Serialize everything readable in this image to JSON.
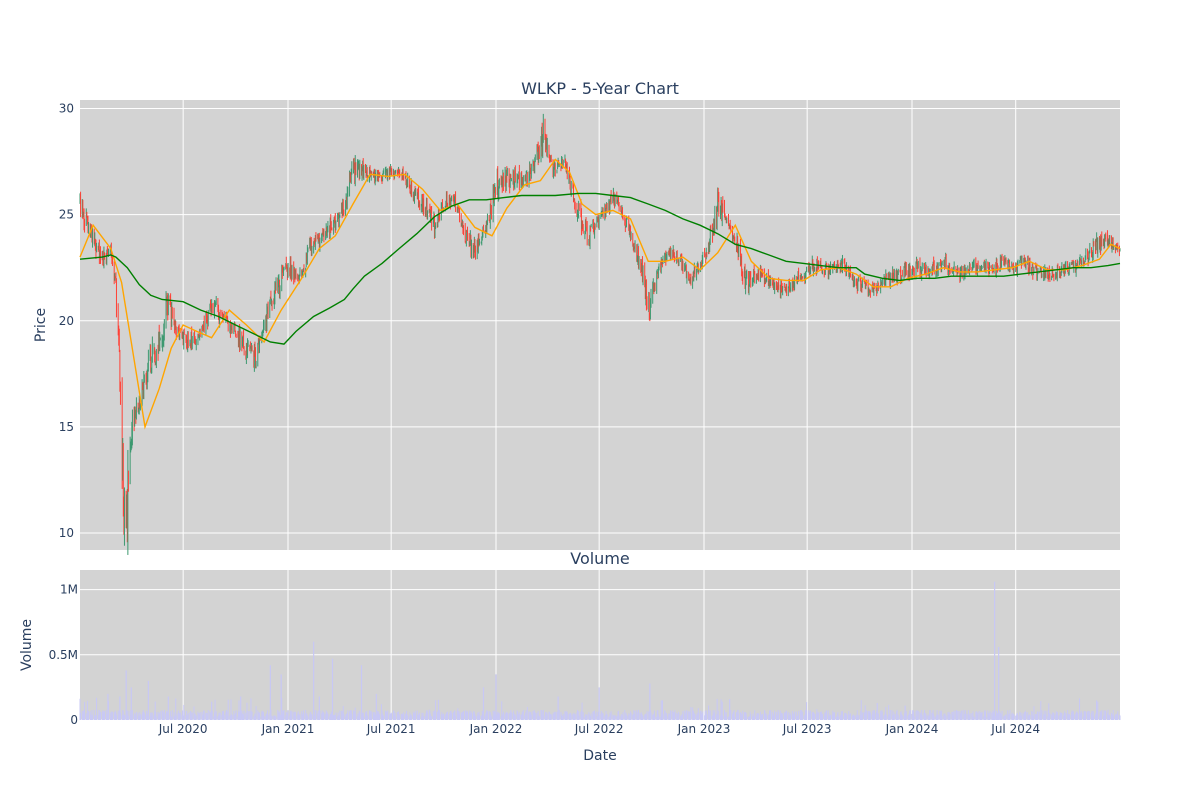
{
  "colors": {
    "plot_bg": "#d3d3d3",
    "up": "#3d9970",
    "down": "#ff4136",
    "ma_short": "#ffa500",
    "ma_long": "#008000",
    "volume": "#c8c8f5",
    "text": "#2a3f5f"
  },
  "chart_data": [
    {
      "type": "candlestick",
      "title": "WLKP - 5-Year Chart",
      "ylabel": "Price",
      "ylim": [
        9.2,
        30.4
      ],
      "yticks": [
        10,
        15,
        20,
        25,
        30
      ],
      "ytick_labels": [
        "10",
        "15",
        "20",
        "25",
        "30"
      ],
      "xlim": [
        "2020-01-02",
        "2024-12-31"
      ],
      "grid": true,
      "price_path": [
        [
          "2020-01-02",
          25.2
        ],
        [
          "2020-01-15",
          24.6
        ],
        [
          "2020-02-01",
          23.3
        ],
        [
          "2020-02-15",
          22.8
        ],
        [
          "2020-02-25",
          23.2
        ],
        [
          "2020-03-05",
          21.5
        ],
        [
          "2020-03-12",
          17.5
        ],
        [
          "2020-03-18",
          12.5
        ],
        [
          "2020-03-23",
          10.6
        ],
        [
          "2020-03-31",
          14.5
        ],
        [
          "2020-04-15",
          16.0
        ],
        [
          "2020-05-01",
          18.0
        ],
        [
          "2020-05-20",
          19.0
        ],
        [
          "2020-06-05",
          21.0
        ],
        [
          "2020-06-20",
          19.5
        ],
        [
          "2020-07-10",
          19.0
        ],
        [
          "2020-08-01",
          19.3
        ],
        [
          "2020-08-20",
          20.6
        ],
        [
          "2020-09-10",
          20.2
        ],
        [
          "2020-10-01",
          19.5
        ],
        [
          "2020-10-20",
          18.6
        ],
        [
          "2020-11-05",
          18.3
        ],
        [
          "2020-11-20",
          19.8
        ],
        [
          "2020-12-10",
          21.5
        ],
        [
          "2021-01-05",
          22.5
        ],
        [
          "2021-01-25",
          22.0
        ],
        [
          "2021-02-10",
          23.6
        ],
        [
          "2021-03-01",
          23.8
        ],
        [
          "2021-03-20",
          24.5
        ],
        [
          "2021-04-10",
          25.5
        ],
        [
          "2021-04-25",
          27.0
        ],
        [
          "2021-05-10",
          27.2
        ],
        [
          "2021-06-01",
          26.8
        ],
        [
          "2021-07-01",
          27.0
        ],
        [
          "2021-07-20",
          26.9
        ],
        [
          "2021-08-10",
          26.0
        ],
        [
          "2021-09-01",
          25.2
        ],
        [
          "2021-09-15",
          24.5
        ],
        [
          "2021-10-01",
          25.5
        ],
        [
          "2021-10-20",
          25.8
        ],
        [
          "2021-11-10",
          23.8
        ],
        [
          "2021-11-25",
          23.3
        ],
        [
          "2021-12-15",
          24.5
        ],
        [
          "2022-01-05",
          26.5
        ],
        [
          "2022-02-01",
          26.8
        ],
        [
          "2022-02-20",
          26.5
        ],
        [
          "2022-03-10",
          27.5
        ],
        [
          "2022-03-25",
          28.8
        ],
        [
          "2022-04-10",
          27.2
        ],
        [
          "2022-05-01",
          27.5
        ],
        [
          "2022-05-20",
          25.5
        ],
        [
          "2022-06-10",
          24.0
        ],
        [
          "2022-07-05",
          24.8
        ],
        [
          "2022-07-25",
          25.8
        ],
        [
          "2022-08-20",
          24.5
        ],
        [
          "2022-09-10",
          22.8
        ],
        [
          "2022-09-28",
          20.5
        ],
        [
          "2022-10-15",
          22.5
        ],
        [
          "2022-11-01",
          23.3
        ],
        [
          "2022-11-20",
          22.8
        ],
        [
          "2022-12-10",
          22.0
        ],
        [
          "2023-01-05",
          23.2
        ],
        [
          "2023-01-25",
          25.4
        ],
        [
          "2023-02-10",
          24.8
        ],
        [
          "2023-03-01",
          23.5
        ],
        [
          "2023-03-15",
          21.8
        ],
        [
          "2023-04-05",
          22.3
        ],
        [
          "2023-05-01",
          21.8
        ],
        [
          "2023-05-25",
          21.4
        ],
        [
          "2023-06-15",
          22.0
        ],
        [
          "2023-07-10",
          22.6
        ],
        [
          "2023-08-05",
          22.4
        ],
        [
          "2023-09-01",
          22.7
        ],
        [
          "2023-09-25",
          21.8
        ],
        [
          "2023-10-20",
          21.3
        ],
        [
          "2023-11-15",
          21.9
        ],
        [
          "2023-12-10",
          22.1
        ],
        [
          "2024-01-10",
          22.5
        ],
        [
          "2024-02-01",
          22.4
        ],
        [
          "2024-02-25",
          22.8
        ],
        [
          "2024-03-25",
          22.2
        ],
        [
          "2024-04-20",
          22.5
        ],
        [
          "2024-05-20",
          22.4
        ],
        [
          "2024-06-10",
          22.8
        ],
        [
          "2024-06-25",
          22.4
        ],
        [
          "2024-07-15",
          22.8
        ],
        [
          "2024-08-05",
          22.3
        ],
        [
          "2024-08-25",
          22.1
        ],
        [
          "2024-09-20",
          22.4
        ],
        [
          "2024-10-15",
          22.6
        ],
        [
          "2024-11-01",
          22.9
        ],
        [
          "2024-11-20",
          23.6
        ],
        [
          "2024-12-10",
          23.8
        ],
        [
          "2024-12-31",
          23.4
        ]
      ],
      "ma_short_path": [
        [
          "2020-01-02",
          23.0
        ],
        [
          "2020-01-25",
          24.5
        ],
        [
          "2020-02-25",
          23.4
        ],
        [
          "2020-03-15",
          21.8
        ],
        [
          "2020-04-10",
          17.5
        ],
        [
          "2020-04-25",
          15.0
        ],
        [
          "2020-05-20",
          16.8
        ],
        [
          "2020-06-10",
          18.7
        ],
        [
          "2020-07-01",
          19.8
        ],
        [
          "2020-07-25",
          19.5
        ],
        [
          "2020-08-20",
          19.2
        ],
        [
          "2020-09-20",
          20.5
        ],
        [
          "2020-10-20",
          19.8
        ],
        [
          "2020-11-20",
          19.0
        ],
        [
          "2020-12-20",
          20.5
        ],
        [
          "2021-01-25",
          22.0
        ],
        [
          "2021-02-25",
          23.4
        ],
        [
          "2021-03-25",
          24.0
        ],
        [
          "2021-04-25",
          25.5
        ],
        [
          "2021-05-25",
          26.9
        ],
        [
          "2021-06-25",
          26.8
        ],
        [
          "2021-07-25",
          26.9
        ],
        [
          "2021-08-25",
          26.2
        ],
        [
          "2021-09-25",
          25.2
        ],
        [
          "2021-10-25",
          25.5
        ],
        [
          "2021-11-25",
          24.4
        ],
        [
          "2021-12-25",
          24.0
        ],
        [
          "2022-01-20",
          25.3
        ],
        [
          "2022-02-20",
          26.4
        ],
        [
          "2022-03-20",
          26.6
        ],
        [
          "2022-04-15",
          27.6
        ],
        [
          "2022-05-10",
          27.0
        ],
        [
          "2022-06-01",
          25.5
        ],
        [
          "2022-06-25",
          25.0
        ],
        [
          "2022-07-25",
          25.2
        ],
        [
          "2022-08-25",
          24.8
        ],
        [
          "2022-09-25",
          22.8
        ],
        [
          "2022-10-25",
          22.8
        ],
        [
          "2022-11-25",
          23.0
        ],
        [
          "2022-12-25",
          22.4
        ],
        [
          "2023-01-25",
          23.2
        ],
        [
          "2023-02-25",
          24.5
        ],
        [
          "2023-03-25",
          22.8
        ],
        [
          "2023-04-25",
          22.0
        ],
        [
          "2023-05-25",
          21.9
        ],
        [
          "2023-06-25",
          21.9
        ],
        [
          "2023-07-25",
          22.4
        ],
        [
          "2023-08-25",
          22.5
        ],
        [
          "2023-09-25",
          22.2
        ],
        [
          "2023-10-25",
          21.6
        ],
        [
          "2023-11-25",
          21.6
        ],
        [
          "2023-12-25",
          22.0
        ],
        [
          "2024-01-25",
          22.2
        ],
        [
          "2024-02-25",
          22.5
        ],
        [
          "2024-03-25",
          22.3
        ],
        [
          "2024-04-25",
          22.3
        ],
        [
          "2024-05-25",
          22.4
        ],
        [
          "2024-06-25",
          22.5
        ],
        [
          "2024-07-25",
          22.8
        ],
        [
          "2024-08-25",
          22.4
        ],
        [
          "2024-09-25",
          22.4
        ],
        [
          "2024-10-25",
          22.6
        ],
        [
          "2024-11-25",
          22.9
        ],
        [
          "2024-12-15",
          23.6
        ],
        [
          "2024-12-31",
          23.4
        ]
      ],
      "ma_long_path": [
        [
          "2020-01-02",
          22.9
        ],
        [
          "2020-02-10",
          23.0
        ],
        [
          "2020-02-25",
          23.1
        ],
        [
          "2020-03-05",
          23.0
        ],
        [
          "2020-03-25",
          22.5
        ],
        [
          "2020-04-15",
          21.7
        ],
        [
          "2020-05-05",
          21.2
        ],
        [
          "2020-05-25",
          21.0
        ],
        [
          "2020-07-01",
          20.9
        ],
        [
          "2020-08-01",
          20.5
        ],
        [
          "2020-09-01",
          20.2
        ],
        [
          "2020-10-01",
          19.8
        ],
        [
          "2020-11-01",
          19.4
        ],
        [
          "2020-12-01",
          19.0
        ],
        [
          "2020-12-25",
          18.9
        ],
        [
          "2021-01-15",
          19.5
        ],
        [
          "2021-02-15",
          20.2
        ],
        [
          "2021-03-15",
          20.6
        ],
        [
          "2021-04-10",
          21.0
        ],
        [
          "2021-04-25",
          21.5
        ],
        [
          "2021-05-15",
          22.1
        ],
        [
          "2021-06-15",
          22.7
        ],
        [
          "2021-07-15",
          23.4
        ],
        [
          "2021-08-15",
          24.1
        ],
        [
          "2021-09-15",
          24.9
        ],
        [
          "2021-10-15",
          25.4
        ],
        [
          "2021-11-15",
          25.7
        ],
        [
          "2021-12-15",
          25.7
        ],
        [
          "2022-01-15",
          25.8
        ],
        [
          "2022-02-15",
          25.9
        ],
        [
          "2022-04-15",
          25.9
        ],
        [
          "2022-05-25",
          26.0
        ],
        [
          "2022-06-25",
          26.0
        ],
        [
          "2022-07-25",
          25.9
        ],
        [
          "2022-08-25",
          25.8
        ],
        [
          "2022-09-25",
          25.5
        ],
        [
          "2022-10-25",
          25.2
        ],
        [
          "2022-11-25",
          24.8
        ],
        [
          "2022-12-25",
          24.5
        ],
        [
          "2023-01-25",
          24.1
        ],
        [
          "2023-02-25",
          23.6
        ],
        [
          "2023-03-25",
          23.4
        ],
        [
          "2023-04-25",
          23.1
        ],
        [
          "2023-05-25",
          22.8
        ],
        [
          "2023-06-25",
          22.7
        ],
        [
          "2023-07-25",
          22.6
        ],
        [
          "2023-08-25",
          22.5
        ],
        [
          "2023-09-25",
          22.5
        ],
        [
          "2023-10-10",
          22.2
        ],
        [
          "2023-11-10",
          22.0
        ],
        [
          "2023-12-10",
          21.9
        ],
        [
          "2024-01-10",
          22.0
        ],
        [
          "2024-02-10",
          22.0
        ],
        [
          "2024-03-10",
          22.1
        ],
        [
          "2024-04-10",
          22.1
        ],
        [
          "2024-05-10",
          22.1
        ],
        [
          "2024-06-10",
          22.1
        ],
        [
          "2024-07-10",
          22.2
        ],
        [
          "2024-08-10",
          22.3
        ],
        [
          "2024-09-10",
          22.4
        ],
        [
          "2024-10-10",
          22.5
        ],
        [
          "2024-11-10",
          22.5
        ],
        [
          "2024-12-10",
          22.6
        ],
        [
          "2024-12-31",
          22.7
        ]
      ]
    },
    {
      "type": "bar",
      "title": "Volume",
      "ylabel": "Volume",
      "xlabel": "Date",
      "ylim": [
        0,
        1150000
      ],
      "yticks": [
        0,
        500000,
        1000000
      ],
      "ytick_labels": [
        "0",
        "0.5M",
        "1M"
      ],
      "xticks": [
        "2020-07-01",
        "2021-01-01",
        "2021-07-01",
        "2022-01-01",
        "2022-07-01",
        "2023-01-01",
        "2023-07-01",
        "2024-01-01",
        "2024-07-01"
      ],
      "xtick_labels": [
        "Jul 2020",
        "Jan 2021",
        "Jul 2021",
        "Jan 2022",
        "Jul 2022",
        "Jan 2023",
        "Jul 2023",
        "Jan 2024",
        "Jul 2024"
      ],
      "baseline": 60000,
      "spikes": [
        [
          "2020-02-20",
          200000
        ],
        [
          "2020-03-12",
          180000
        ],
        [
          "2020-03-23",
          380000
        ],
        [
          "2020-04-01",
          250000
        ],
        [
          "2020-05-01",
          300000
        ],
        [
          "2020-06-05",
          180000
        ],
        [
          "2020-08-20",
          140000
        ],
        [
          "2020-10-10",
          180000
        ],
        [
          "2020-12-01",
          420000
        ],
        [
          "2020-12-20",
          350000
        ],
        [
          "2021-02-15",
          600000
        ],
        [
          "2021-02-25",
          180000
        ],
        [
          "2021-03-20",
          470000
        ],
        [
          "2021-05-10",
          420000
        ],
        [
          "2021-06-05",
          200000
        ],
        [
          "2021-12-10",
          250000
        ],
        [
          "2022-01-01",
          350000
        ],
        [
          "2022-04-20",
          180000
        ],
        [
          "2022-07-01",
          250000
        ],
        [
          "2022-09-28",
          280000
        ],
        [
          "2022-10-20",
          150000
        ],
        [
          "2023-02-15",
          160000
        ],
        [
          "2023-11-01",
          130000
        ],
        [
          "2023-12-20",
          110000
        ],
        [
          "2024-05-25",
          1060000
        ],
        [
          "2024-06-01",
          560000
        ],
        [
          "2024-11-20",
          150000
        ]
      ]
    }
  ]
}
